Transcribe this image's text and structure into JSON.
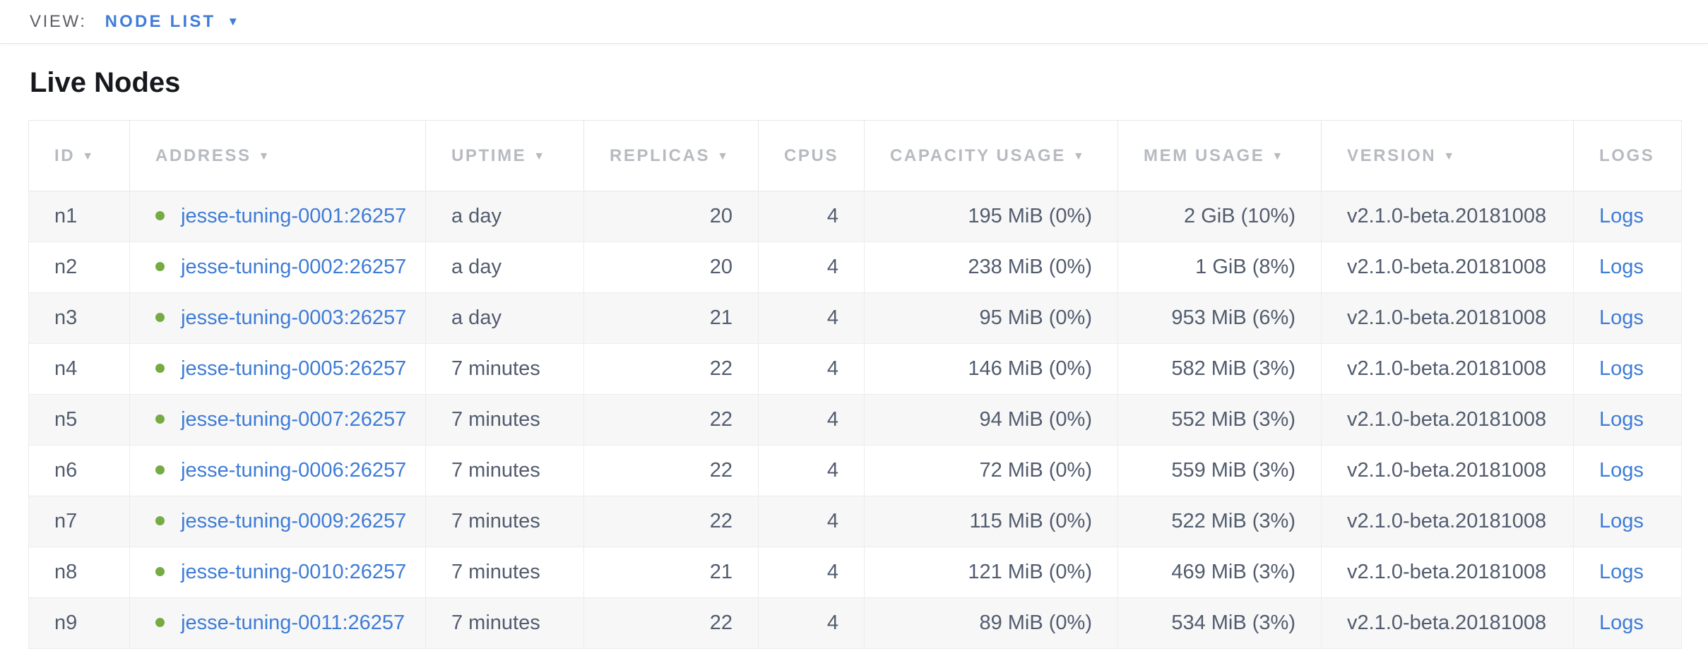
{
  "toolbar": {
    "view_label": "VIEW:",
    "view_value": "NODE LIST",
    "dropdown_icon": "▼"
  },
  "page": {
    "title": "Live Nodes"
  },
  "colors": {
    "link_blue": "#3e7cd6",
    "live_green": "#76ab43",
    "header_gray": "#b7bac0",
    "body_text": "#525c6e",
    "row_stripe": "#f7f7f7",
    "border": "#e7e7e7"
  },
  "table": {
    "sort_icon": "▼",
    "columns": [
      {
        "label": "ID",
        "sortable": true
      },
      {
        "label": "ADDRESS",
        "sortable": true
      },
      {
        "label": "UPTIME",
        "sortable": true
      },
      {
        "label": "REPLICAS",
        "sortable": true
      },
      {
        "label": "CPUS",
        "sortable": false
      },
      {
        "label": "CAPACITY USAGE",
        "sortable": true
      },
      {
        "label": "MEM USAGE",
        "sortable": true
      },
      {
        "label": "VERSION",
        "sortable": true
      },
      {
        "label": "LOGS",
        "sortable": false
      }
    ],
    "rows": [
      {
        "id": "n1",
        "address": "jesse-tuning-0001:26257",
        "uptime": "a day",
        "replicas": "20",
        "cpus": "4",
        "capacity": "195 MiB (0%)",
        "mem": "2 GiB (10%)",
        "version": "v2.1.0-beta.20181008",
        "logs": "Logs"
      },
      {
        "id": "n2",
        "address": "jesse-tuning-0002:26257",
        "uptime": "a day",
        "replicas": "20",
        "cpus": "4",
        "capacity": "238 MiB (0%)",
        "mem": "1 GiB (8%)",
        "version": "v2.1.0-beta.20181008",
        "logs": "Logs"
      },
      {
        "id": "n3",
        "address": "jesse-tuning-0003:26257",
        "uptime": "a day",
        "replicas": "21",
        "cpus": "4",
        "capacity": "95 MiB (0%)",
        "mem": "953 MiB (6%)",
        "version": "v2.1.0-beta.20181008",
        "logs": "Logs"
      },
      {
        "id": "n4",
        "address": "jesse-tuning-0005:26257",
        "uptime": "7 minutes",
        "replicas": "22",
        "cpus": "4",
        "capacity": "146 MiB (0%)",
        "mem": "582 MiB (3%)",
        "version": "v2.1.0-beta.20181008",
        "logs": "Logs"
      },
      {
        "id": "n5",
        "address": "jesse-tuning-0007:26257",
        "uptime": "7 minutes",
        "replicas": "22",
        "cpus": "4",
        "capacity": "94 MiB (0%)",
        "mem": "552 MiB (3%)",
        "version": "v2.1.0-beta.20181008",
        "logs": "Logs"
      },
      {
        "id": "n6",
        "address": "jesse-tuning-0006:26257",
        "uptime": "7 minutes",
        "replicas": "22",
        "cpus": "4",
        "capacity": "72 MiB (0%)",
        "mem": "559 MiB (3%)",
        "version": "v2.1.0-beta.20181008",
        "logs": "Logs"
      },
      {
        "id": "n7",
        "address": "jesse-tuning-0009:26257",
        "uptime": "7 minutes",
        "replicas": "22",
        "cpus": "4",
        "capacity": "115 MiB (0%)",
        "mem": "522 MiB (3%)",
        "version": "v2.1.0-beta.20181008",
        "logs": "Logs"
      },
      {
        "id": "n8",
        "address": "jesse-tuning-0010:26257",
        "uptime": "7 minutes",
        "replicas": "21",
        "cpus": "4",
        "capacity": "121 MiB (0%)",
        "mem": "469 MiB (3%)",
        "version": "v2.1.0-beta.20181008",
        "logs": "Logs"
      },
      {
        "id": "n9",
        "address": "jesse-tuning-0011:26257",
        "uptime": "7 minutes",
        "replicas": "22",
        "cpus": "4",
        "capacity": "89 MiB (0%)",
        "mem": "534 MiB (3%)",
        "version": "v2.1.0-beta.20181008",
        "logs": "Logs"
      }
    ]
  }
}
